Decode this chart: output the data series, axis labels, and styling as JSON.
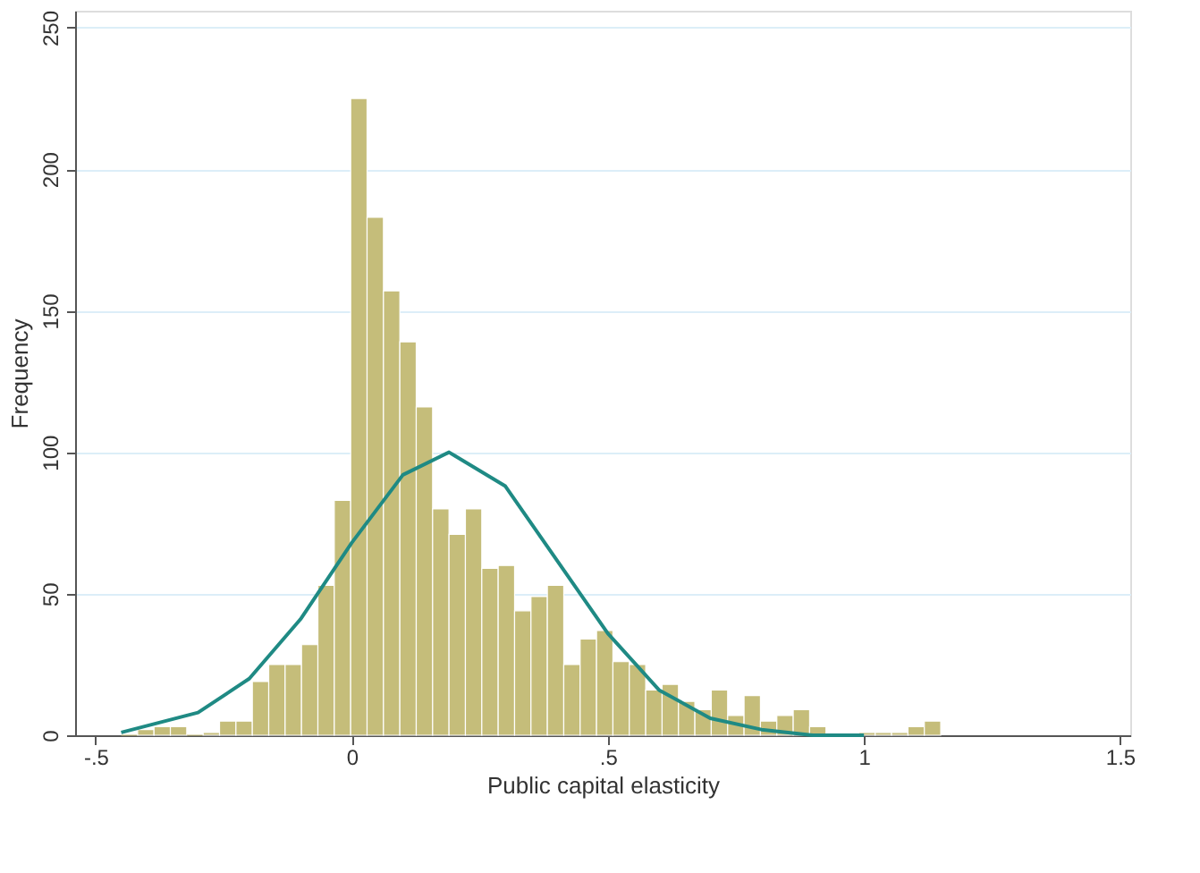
{
  "chart_data": {
    "type": "histogram",
    "xlabel": "Public capital elasticity",
    "ylabel": "Frequency",
    "bins": [
      -0.45,
      -0.418,
      -0.386,
      -0.354,
      -0.322,
      -0.29,
      -0.258,
      -0.226,
      -0.194,
      -0.162,
      -0.13,
      -0.098,
      -0.066,
      -0.034,
      -0.002,
      0.03,
      0.062,
      0.094,
      0.126,
      0.158,
      0.19,
      0.222,
      0.254,
      0.286,
      0.318,
      0.35,
      0.382,
      0.414,
      0.446,
      0.478,
      0.51,
      0.542,
      0.574,
      0.606,
      0.638,
      0.67,
      0.702,
      0.734,
      0.766,
      0.798,
      0.83,
      0.862,
      0.894,
      0.926,
      0.958,
      0.99,
      1.022,
      1.054,
      1.086,
      1.118,
      1.15
    ],
    "values": [
      0,
      2,
      3,
      3,
      0,
      1,
      5,
      5,
      19,
      25,
      25,
      32,
      53,
      83,
      225,
      183,
      157,
      139,
      116,
      80,
      71,
      80,
      59,
      60,
      44,
      49,
      53,
      25,
      34,
      37,
      26,
      25,
      16,
      18,
      12,
      9,
      16,
      7,
      14,
      5,
      7,
      9,
      3,
      null,
      null,
      1,
      1,
      1,
      3,
      5
    ],
    "color": "#c5bd7a",
    "series": [
      {
        "type": "line",
        "color": "#1f8a84",
        "x": [
          -0.45,
          -0.3,
          -0.2,
          -0.1,
          0,
          0.1,
          0.19,
          0.3,
          0.4,
          0.5,
          0.6,
          0.7,
          0.8,
          0.9,
          1.0
        ],
        "values": [
          1,
          8,
          20,
          41,
          68,
          92,
          100,
          88,
          62,
          36,
          16,
          6,
          2,
          0,
          0
        ]
      }
    ],
    "xlim": [
      -0.54,
      1.52
    ],
    "ylim": [
      0,
      256
    ],
    "xticks": [
      {
        "value": -0.5,
        "label": "-.5"
      },
      0,
      {
        "value": 0.5,
        "label": ".5"
      },
      1,
      1.5
    ],
    "yticks": [
      0,
      50,
      100,
      150,
      200,
      250
    ],
    "grid": "y"
  }
}
